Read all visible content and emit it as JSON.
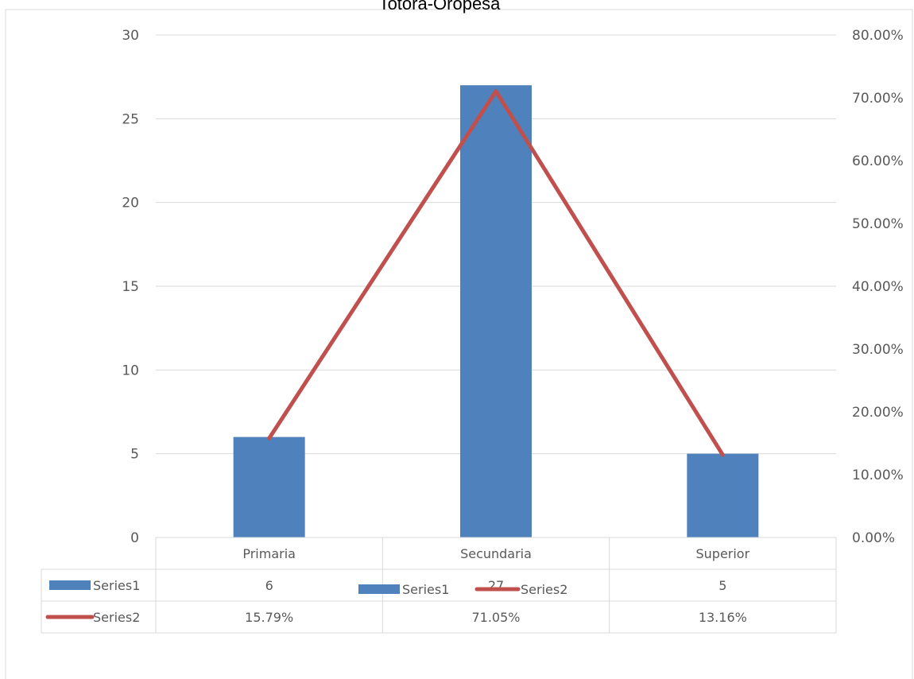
{
  "chart_data": {
    "type": "bar",
    "title": "Totora-Oropesa",
    "categories": [
      "Primaria",
      "Secundaria",
      "Superior"
    ],
    "series": [
      {
        "name": "Series1",
        "type": "bar",
        "axis": "left",
        "values": [
          6,
          27,
          5
        ],
        "display": [
          "6",
          "27",
          "5"
        ],
        "color": "#4F81BD"
      },
      {
        "name": "Series2",
        "type": "line",
        "axis": "right",
        "values": [
          0.1579,
          0.7105,
          0.1316
        ],
        "display": [
          "15.79%",
          "71.05%",
          "13.16%"
        ],
        "color": "#C0504D"
      }
    ],
    "y_left": {
      "min": 0,
      "max": 30,
      "step": 5,
      "ticks": [
        "0",
        "5",
        "10",
        "15",
        "20",
        "25",
        "30"
      ]
    },
    "y_right": {
      "min": 0,
      "max": 0.8,
      "step": 0.1,
      "ticks": [
        "0.00%",
        "10.00%",
        "20.00%",
        "30.00%",
        "40.00%",
        "50.00%",
        "60.00%",
        "70.00%",
        "80.00%"
      ]
    },
    "grid": true,
    "data_table": true,
    "legend": "bottom"
  }
}
